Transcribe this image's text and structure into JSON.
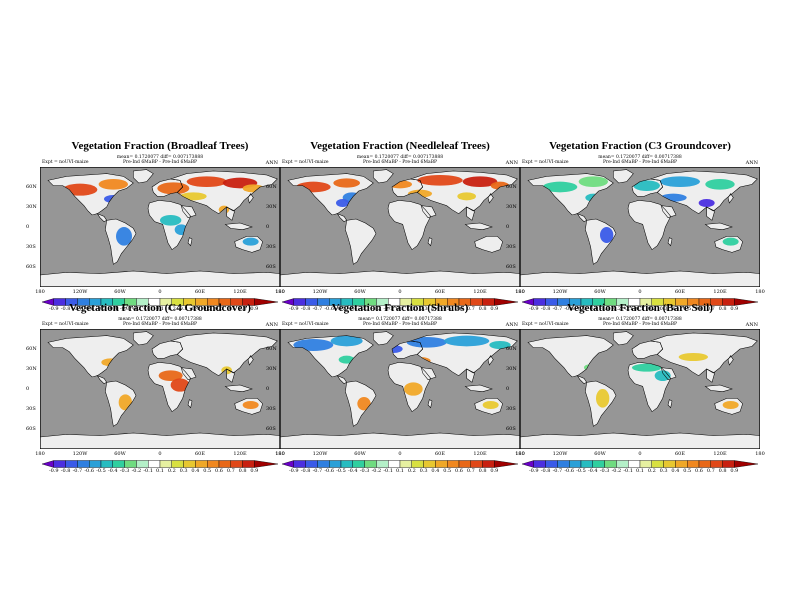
{
  "page": {
    "longitude_labels": [
      "180",
      "120W",
      "60W",
      "0",
      "60E",
      "120E",
      "180"
    ],
    "latitude_labels": [
      "60N",
      "30N",
      "0",
      "30S",
      "60S"
    ],
    "colorbar_levels": [
      "-0.9",
      "-0.8",
      "-0.7",
      "-0.6",
      "-0.5",
      "-0.4",
      "-0.3",
      "-0.2",
      "-0.1",
      "0.1",
      "0.2",
      "0.3",
      "0.4",
      "0.5",
      "0.6",
      "0.7",
      "0.8",
      "0.9"
    ],
    "colorbar_colors": [
      "#6a00c8",
      "#4b2ee0",
      "#3a5be8",
      "#2f7fe0",
      "#2aa0d8",
      "#27bcc0",
      "#2fcf9f",
      "#6fdc80",
      "#b4f0c8",
      "#ffffff",
      "#e6f0a0",
      "#d8e040",
      "#e8c830",
      "#f0a828",
      "#f08820",
      "#e86818",
      "#e04818",
      "#c82010",
      "#a00000"
    ],
    "colors": {
      "ocean": "#969696",
      "land_neutral": "#eeeeee",
      "coastline": "#000000"
    }
  },
  "panels": [
    {
      "title": "Vegetation Fraction (Broadleaf Trees)",
      "stats": "mean= 0.1720077 diff= 0.007173888",
      "run_label": "Pre-Ind 6MaBP - Pre-Ind 6MaBP",
      "expt": "Expt = noUVI-maize",
      "season": "ANN"
    },
    {
      "title": "Vegetation Fraction (Needleleaf Trees)",
      "stats": "mean= 0.1720077 diff= 0.007173888",
      "run_label": "Pre-Ind 6MaBP - Pre-Ind 6MaBP",
      "expt": "Expt = noUVI-maize",
      "season": "ANN"
    },
    {
      "title": "Vegetation Fraction (C3 Groundcover)",
      "stats": "mean= 0.1720077 diff= 0.00717388",
      "run_label": "Pre-Ind 6MaBP - Pre-Ind 6MaBP",
      "expt": "Expt = noUVI-maize",
      "season": "ANN"
    },
    {
      "title": "Vegetation Fraction (C4 Groundcover)",
      "stats": "mean= 0.1720077 diff= 0.00717388",
      "run_label": "Pre-Ind 6MaBP - Pre-Ind 6MaBP",
      "expt": "Expt = noUVI-maize",
      "season": "ANN"
    },
    {
      "title": "Vegetation Fraction (Shrubs)",
      "stats": "mean= 0.1720077 diff= 0.00717388",
      "run_label": "Pre-Ind 6MaBP - Pre-Ind 6MaBP",
      "expt": "Expt = noUVI-maize",
      "season": "ANN"
    },
    {
      "title": "Vegetation Fraction (Bare Soil)",
      "stats": "mean= 0.1720077 diff= 0.00717388",
      "run_label": "Pre-Ind 6MaBP - Pre-Ind 6MaBP",
      "expt": "Expt = noUVI-maize",
      "season": "ANN"
    }
  ]
}
